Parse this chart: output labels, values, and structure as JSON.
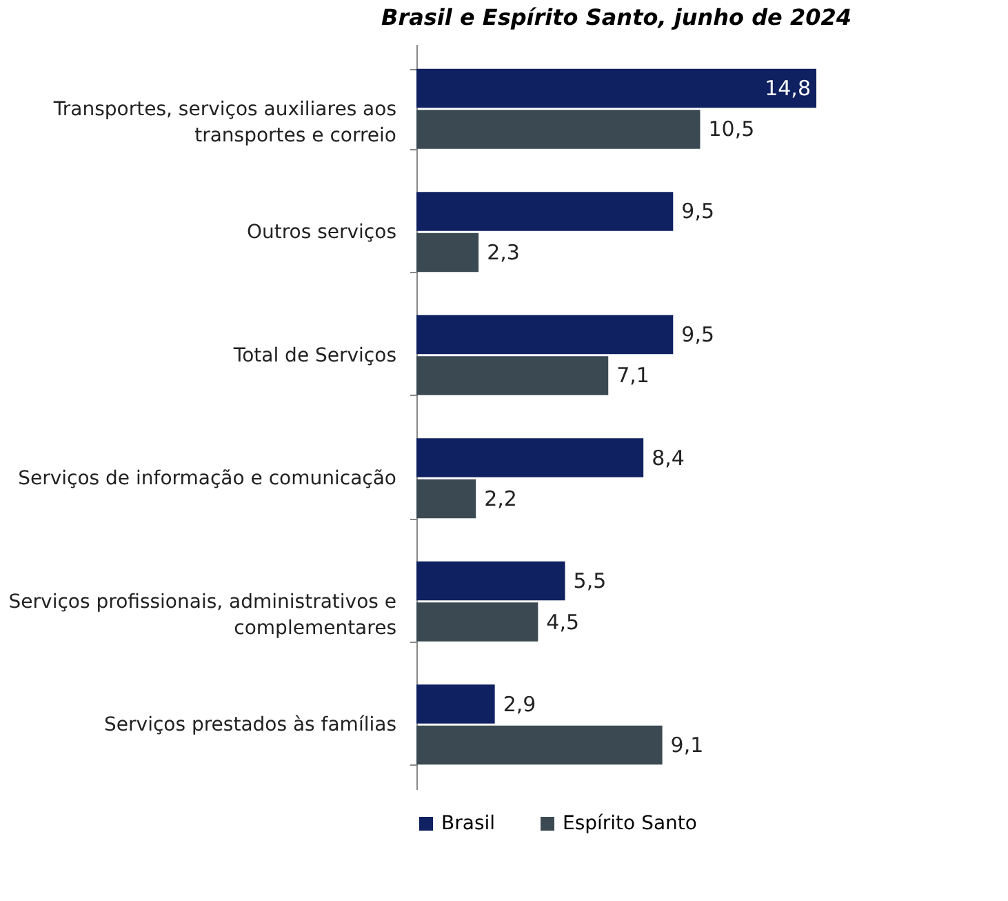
{
  "chart_data": {
    "type": "bar",
    "orientation": "horizontal",
    "title": "Brasil e Espírito Santo, junho de 2024",
    "categories": [
      "Transportes, serviços auxiliares aos transportes e correio",
      "Outros serviços",
      "Total de Serviços",
      "Serviços de informação e comunicação",
      "Serviços profissionais, administrativos e complementares",
      "Serviços prestados às famílias"
    ],
    "series": [
      {
        "name": "Brasil",
        "color": "#0f2160",
        "values": [
          14.8,
          9.5,
          9.5,
          8.4,
          5.5,
          2.9
        ],
        "value_labels": [
          "14,8",
          "9,5",
          "9,5",
          "8,4",
          "5,5",
          "2,9"
        ]
      },
      {
        "name": "Espírito Santo",
        "color": "#3b4a52",
        "values": [
          10.5,
          2.3,
          7.1,
          2.2,
          4.5,
          9.1
        ],
        "value_labels": [
          "10,5",
          "2,3",
          "7,1",
          "2,2",
          "4,5",
          "9,1"
        ]
      }
    ],
    "legend": "bottom",
    "grid": false
  }
}
